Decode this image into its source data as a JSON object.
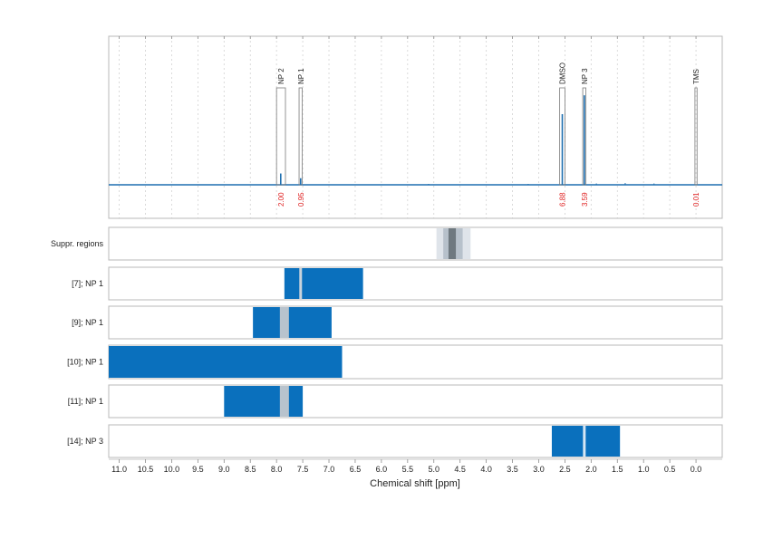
{
  "chart_data": {
    "type": "nmr-spectrum",
    "xlabel": "Chemical shift [ppm]",
    "xlim": [
      11.2,
      -0.5
    ],
    "xticks": [
      11.0,
      10.5,
      10.0,
      9.5,
      9.0,
      8.5,
      8.0,
      7.5,
      7.0,
      6.5,
      6.0,
      5.5,
      5.0,
      4.5,
      4.0,
      3.5,
      3.0,
      2.5,
      2.0,
      1.5,
      1.0,
      0.5,
      0.0
    ],
    "xtick_labels": [
      "11.0",
      "10.5",
      "10.0",
      "9.5",
      "9.0",
      "8.5",
      "8.0",
      "7.5",
      "7.0",
      "6.5",
      "6.0",
      "5.5",
      "5.0",
      "4.5",
      "4.0",
      "3.5",
      "3.0",
      "2.5",
      "2.0",
      "1.5",
      "1.0",
      "0.5",
      "0.0"
    ],
    "spectrum_color": "#1f6fb0",
    "peaks": [
      {
        "label": "NP 2",
        "region": [
          8.0,
          7.83
        ],
        "shift": 7.92,
        "height": 0.12,
        "integral": "2.00"
      },
      {
        "label": "NP 1",
        "region": [
          7.57,
          7.51
        ],
        "shift": 7.54,
        "height": 0.07,
        "integral": "0.95"
      },
      {
        "label": "DMSO",
        "region": [
          2.6,
          2.5
        ],
        "shift": 2.55,
        "height": 0.75,
        "integral": "6.88"
      },
      {
        "label": "NP 3",
        "region": [
          2.16,
          2.1
        ],
        "shift": 2.13,
        "height": 0.95,
        "integral": "3.59"
      },
      {
        "label": "TMS",
        "region": [
          0.02,
          -0.02
        ],
        "shift": 0.0,
        "height": 0.0,
        "integral": "0.01"
      }
    ],
    "rows": [
      {
        "label": "Suppr. regions",
        "type": "suppression",
        "bands": [
          {
            "from": 4.95,
            "to": 4.3,
            "color": "#dfe4ea"
          },
          {
            "from": 4.82,
            "to": 4.45,
            "color": "#b7c1cb"
          },
          {
            "from": 4.72,
            "to": 4.58,
            "color": "#6f7980"
          }
        ]
      },
      {
        "label": "[7]; NP 1",
        "range": [
          7.85,
          6.35
        ],
        "center": 7.54,
        "center_color": "#c9d3dc"
      },
      {
        "label": "[9]; NP 1",
        "range": [
          8.45,
          6.95
        ],
        "center": 7.85,
        "center_color": "#b8c3cd"
      },
      {
        "label": "[10]; NP 1",
        "range": [
          11.2,
          6.75
        ],
        "center": null,
        "center_color": null
      },
      {
        "label": "[11]; NP 1",
        "range": [
          9.0,
          7.5
        ],
        "center": 7.85,
        "center_color": "#b8c3cd"
      },
      {
        "label": "[14]; NP 3",
        "range": [
          2.75,
          1.45
        ],
        "center": 2.13,
        "center_color": "#d6e6f4"
      }
    ],
    "bar_color": "#0a70bd",
    "grid": true
  }
}
